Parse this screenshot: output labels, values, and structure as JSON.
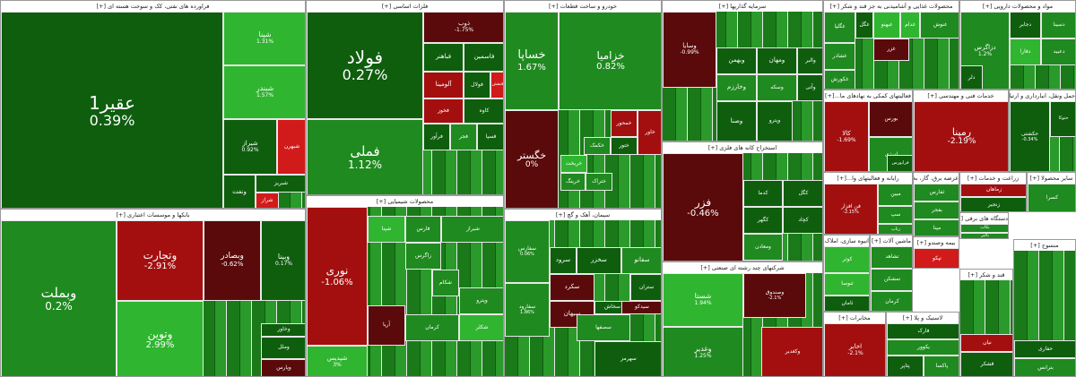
{
  "colors": {
    "dark_green": "#0e5e0e",
    "green": "#1f8a1f",
    "light_green": "#2fb52f",
    "dark_red": "#5a0a0a",
    "red": "#a30f0f",
    "light_red": "#d11a1a"
  },
  "sectors": [
    {
      "id": "oil",
      "title": "فراورده های نفتی، کک و سوخت هسته ای [+]",
      "tiles": [
        {
          "name": "عقیر1",
          "pct": "0.39%"
        },
        {
          "name": "شپنا",
          "pct": "1.31%"
        },
        {
          "name": "شبندر",
          "pct": "1.57%"
        },
        {
          "name": "شیراز",
          "pct": "0.92%"
        },
        {
          "name": "شبهرن",
          "pct": ""
        },
        {
          "name": "شبریز",
          "pct": ""
        },
        {
          "name": "ونفت",
          "pct": ""
        },
        {
          "name": "شراز",
          "pct": ""
        }
      ]
    },
    {
      "id": "basic_metals",
      "title": "فلزات اساسی [+]",
      "tiles": [
        {
          "name": "فولاد",
          "pct": "0.27%"
        },
        {
          "name": "فملی",
          "pct": "1.12%"
        },
        {
          "name": "ذوب",
          "pct": "-1.75%"
        },
        {
          "name": "فباهنر",
          "pct": ""
        },
        {
          "name": "فاسمین",
          "pct": ""
        },
        {
          "name": "فولال",
          "pct": ""
        },
        {
          "name": "آلومینا",
          "pct": ""
        },
        {
          "name": "فنقش",
          "pct": ""
        },
        {
          "name": "کاوه",
          "pct": ""
        },
        {
          "name": "فجر",
          "pct": ""
        },
        {
          "name": "فخوز",
          "pct": ""
        },
        {
          "name": "فرآور",
          "pct": ""
        },
        {
          "name": "فسپا",
          "pct": ""
        }
      ]
    },
    {
      "id": "auto",
      "title": "خودرو و ساخت قطعات [+]",
      "tiles": [
        {
          "name": "خساپا",
          "pct": "1.67%"
        },
        {
          "name": "خزامیا",
          "pct": "0.82%"
        },
        {
          "name": "خگستر",
          "pct": "0%"
        },
        {
          "name": "خکمک",
          "pct": ""
        },
        {
          "name": "ختور",
          "pct": ""
        },
        {
          "name": "خریخت",
          "pct": ""
        },
        {
          "name": "ختراک",
          "pct": ""
        },
        {
          "name": "خمحور",
          "pct": ""
        },
        {
          "name": "خرینگ",
          "pct": ""
        },
        {
          "name": "خاور",
          "pct": ""
        }
      ]
    },
    {
      "id": "investment",
      "title": "سرمایه گذاریها [+]",
      "tiles": [
        {
          "name": "وسایا",
          "pct": "-0.99%"
        },
        {
          "name": "وبهمن",
          "pct": ""
        },
        {
          "name": "ومهان",
          "pct": ""
        },
        {
          "name": "وخارزم",
          "pct": ""
        },
        {
          "name": "وصنا",
          "pct": ""
        },
        {
          "name": "وسکه",
          "pct": ""
        },
        {
          "name": "والبر",
          "pct": ""
        },
        {
          "name": "وآتی",
          "pct": ""
        },
        {
          "name": "وپترو",
          "pct": ""
        }
      ]
    },
    {
      "id": "food",
      "title": "محصولات غذایی و آشامیدنی به جز قند و شکر [+]",
      "tiles": [
        {
          "name": "غگلپا",
          "pct": ""
        },
        {
          "name": "غگل",
          "pct": ""
        },
        {
          "name": "غبهنو",
          "pct": ""
        },
        {
          "name": "غدام",
          "pct": ""
        },
        {
          "name": "غنوش",
          "pct": ""
        },
        {
          "name": "غشاذر",
          "pct": ""
        },
        {
          "name": "غزر",
          "pct": ""
        },
        {
          "name": "غکورش",
          "pct": ""
        }
      ]
    },
    {
      "id": "pharma",
      "title": "مواد و محصولات دارویی [+]",
      "tiles": [
        {
          "name": "دزاگرس",
          "pct": "1.2%"
        },
        {
          "name": "دسینا",
          "pct": ""
        },
        {
          "name": "دلر",
          "pct": ""
        },
        {
          "name": "دجابر",
          "pct": ""
        },
        {
          "name": "دفارا",
          "pct": ""
        },
        {
          "name": "دعبید",
          "pct": ""
        }
      ]
    },
    {
      "id": "banks",
      "title": "بانکها و موسسات اعتباری [+]",
      "tiles": [
        {
          "name": "وبملت",
          "pct": "0.2%"
        },
        {
          "name": "وتجارت",
          "pct": "-2.91%"
        },
        {
          "name": "وبصادر",
          "pct": "-0.62%"
        },
        {
          "name": "وبینا",
          "pct": "0.17%"
        },
        {
          "name": "وتوین",
          "pct": "2.99%"
        },
        {
          "name": "وملل",
          "pct": ""
        },
        {
          "name": "وخاور",
          "pct": ""
        },
        {
          "name": "وپارس",
          "pct": ""
        }
      ]
    },
    {
      "id": "chemicals",
      "title": "محصولات شیمیایی [+]",
      "tiles": [
        {
          "name": "نوری",
          "pct": "-1.06%"
        },
        {
          "name": "شپدیس",
          "pct": "3%"
        },
        {
          "name": "زاگرس",
          "pct": ""
        },
        {
          "name": "فارس",
          "pct": ""
        },
        {
          "name": "شپنا",
          "pct": ""
        },
        {
          "name": "شیراز",
          "pct": ""
        },
        {
          "name": "آریا",
          "pct": ""
        },
        {
          "name": "شکلر",
          "pct": ""
        },
        {
          "name": "شکام",
          "pct": ""
        },
        {
          "name": "وپترو",
          "pct": ""
        },
        {
          "name": "کرمان",
          "pct": ""
        }
      ]
    },
    {
      "id": "cement",
      "title": "سیمان، آهک و گچ [+]",
      "tiles": [
        {
          "name": "سفارس",
          "pct": "0.06%"
        },
        {
          "name": "سخزر",
          "pct": ""
        },
        {
          "name": "سفانو",
          "pct": ""
        },
        {
          "name": "سرود",
          "pct": ""
        },
        {
          "name": "سکرد",
          "pct": ""
        },
        {
          "name": "سیهان",
          "pct": ""
        },
        {
          "name": "سصفها",
          "pct": ""
        },
        {
          "name": "سهرمز",
          "pct": ""
        },
        {
          "name": "سفارود",
          "pct": "1.86%"
        },
        {
          "name": "ستران",
          "pct": ""
        },
        {
          "name": "سخاش",
          "pct": ""
        },
        {
          "name": "سیدکو",
          "pct": ""
        }
      ]
    },
    {
      "id": "mining",
      "title": "استخراج کانه های فلزی [+]",
      "tiles": [
        {
          "name": "فزر",
          "pct": "-0.46%"
        },
        {
          "name": "کگل",
          "pct": ""
        },
        {
          "name": "کچاد",
          "pct": ""
        },
        {
          "name": "کگهر",
          "pct": ""
        },
        {
          "name": "ومعادن",
          "pct": ""
        },
        {
          "name": "کدما",
          "pct": ""
        }
      ]
    },
    {
      "id": "conglomerate",
      "title": "شرکتهای چند رشته ای صنعتی [+]",
      "tiles": [
        {
          "name": "شستا",
          "pct": "1.94%"
        },
        {
          "name": "وصندوق",
          "pct": "-2.1%"
        },
        {
          "name": "وغدیر",
          "pct": "1.25%"
        },
        {
          "name": "وکغدیر",
          "pct": ""
        }
      ]
    },
    {
      "id": "support",
      "title": "فعالیتهای کمکی به نهادهای ما...[+]",
      "tiles": [
        {
          "name": "بورس",
          "pct": ""
        },
        {
          "name": "کالا",
          "pct": "-1.69%"
        },
        {
          "name": "انرژی",
          "pct": ""
        },
        {
          "name": "فرابورس",
          "pct": ""
        }
      ]
    },
    {
      "id": "engineering",
      "title": "خدمات فنی و مهندسی [+]",
      "tiles": [
        {
          "name": "رمپنا",
          "pct": "-2.19%"
        }
      ]
    },
    {
      "id": "transport",
      "title": "حمل ونقل، انبارداری و ارتباط [+]",
      "tiles": [
        {
          "name": "حکشتی",
          "pct": "-0.34%"
        },
        {
          "name": "حتوکا",
          "pct": ""
        }
      ]
    },
    {
      "id": "utilities",
      "title": "عرضه برق، گاز، بخار [+]",
      "tiles": [
        {
          "name": "ثفارس",
          "pct": ""
        },
        {
          "name": "بفجر",
          "pct": ""
        },
        {
          "name": "مپنا",
          "pct": ""
        }
      ]
    },
    {
      "id": "farming",
      "title": "زراعت و خدمات [+]",
      "tiles": [
        {
          "name": "زماهان",
          "pct": ""
        },
        {
          "name": "زنجیر",
          "pct": ""
        }
      ]
    },
    {
      "id": "other",
      "title": "سایر محصولا [+]",
      "tiles": [
        {
          "name": "کسرا",
          "pct": ""
        }
      ]
    },
    {
      "id": "computer",
      "title": "رایانه و فعالیتهای وا...[+]",
      "tiles": [
        {
          "name": "فن افزار",
          "pct": "-2.15%"
        },
        {
          "name": "مبین",
          "pct": ""
        },
        {
          "name": "سپ",
          "pct": ""
        },
        {
          "name": "رتاپ",
          "pct": ""
        }
      ]
    },
    {
      "id": "insurance",
      "title": "بیمه وصندو [+]",
      "tiles": [
        {
          "name": "تپکو",
          "pct": ""
        }
      ]
    },
    {
      "id": "machinery",
      "title": "ماشین آلات [+]",
      "tiles": [
        {
          "name": "تشاهد",
          "pct": ""
        },
        {
          "name": "تمشکن",
          "pct": ""
        },
        {
          "name": "کرمان",
          "pct": ""
        }
      ]
    },
    {
      "id": "realestate",
      "title": "انبوه سازی، املاک و م...[+]",
      "tiles": [
        {
          "name": "کوثر",
          "pct": ""
        },
        {
          "name": "ثنوسا",
          "pct": ""
        },
        {
          "name": "ثامان",
          "pct": ""
        }
      ]
    },
    {
      "id": "electric",
      "title": "دستگاه های برقی [+]",
      "tiles": [
        {
          "name": "بکاب",
          "pct": ""
        },
        {
          "name": "بالبر",
          "pct": ""
        }
      ]
    },
    {
      "id": "telecom",
      "title": "مخابرات [+]",
      "tiles": [
        {
          "name": "اخابر",
          "pct": "-2.1%"
        },
        {
          "name": "همراه",
          "pct": ""
        }
      ]
    },
    {
      "id": "rubber",
      "title": "لاستیک و پلا [+]",
      "tiles": [
        {
          "name": "فارک",
          "pct": ""
        },
        {
          "name": "یکوور",
          "pct": ""
        },
        {
          "name": "پتاپر",
          "pct": ""
        },
        {
          "name": "پاکسا",
          "pct": ""
        }
      ]
    },
    {
      "id": "sugar",
      "title": "قند و شکر [+]",
      "tiles": [
        {
          "name": "نیان",
          "pct": ""
        },
        {
          "name": "قشکر",
          "pct": ""
        }
      ]
    },
    {
      "id": "misc",
      "title": "منسوج [+]",
      "tiles": [
        {
          "name": "حفاری",
          "pct": ""
        },
        {
          "name": "بترانس",
          "pct": ""
        }
      ]
    }
  ]
}
